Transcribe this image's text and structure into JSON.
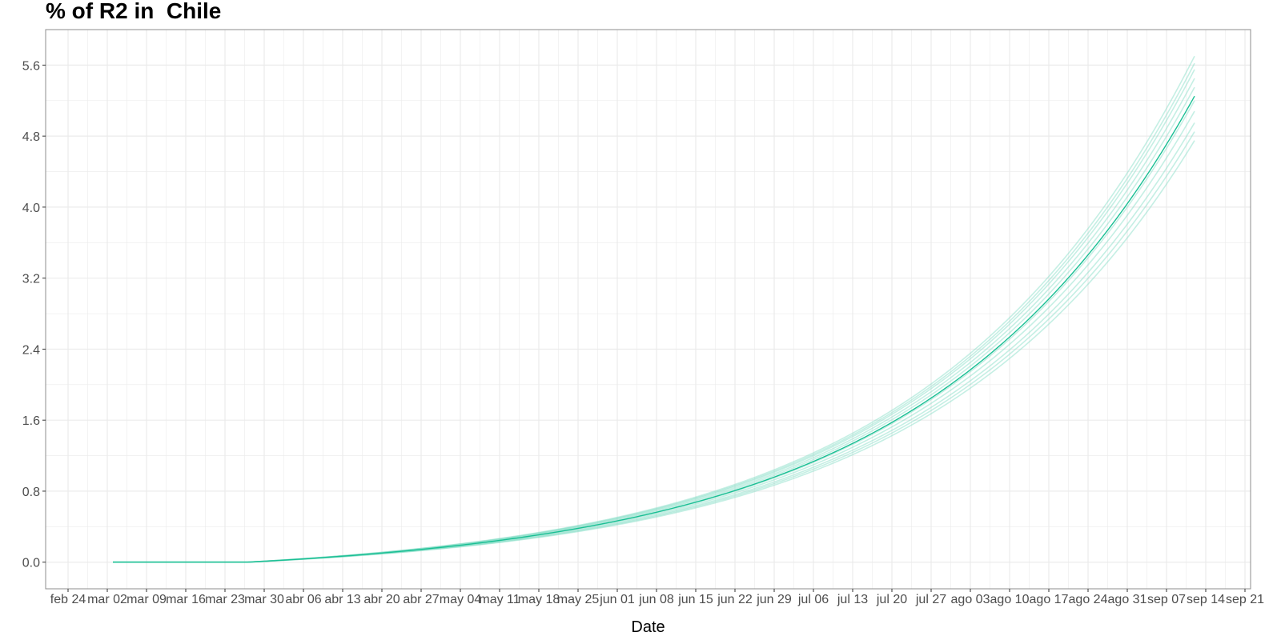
{
  "chart_data": {
    "type": "line",
    "title": "% of R2 in  Chile",
    "xlabel": "Date",
    "ylabel": "",
    "xlim": [
      "2020-02-20",
      "2020-09-22"
    ],
    "ylim": [
      -0.3,
      6.0
    ],
    "y_ticks": [
      0.0,
      0.8,
      1.6,
      2.4,
      3.2,
      4.0,
      4.8,
      5.6
    ],
    "y_tick_labels": [
      "0.0",
      "0.8",
      "1.6",
      "2.4",
      "3.2",
      "4.0",
      "4.8",
      "5.6"
    ],
    "x_ticks": [
      "2020-02-24",
      "2020-03-02",
      "2020-03-09",
      "2020-03-16",
      "2020-03-23",
      "2020-03-30",
      "2020-04-06",
      "2020-04-13",
      "2020-04-20",
      "2020-04-27",
      "2020-05-04",
      "2020-05-11",
      "2020-05-18",
      "2020-05-25",
      "2020-06-01",
      "2020-06-08",
      "2020-06-15",
      "2020-06-22",
      "2020-06-29",
      "2020-07-06",
      "2020-07-13",
      "2020-07-20",
      "2020-07-27",
      "2020-08-03",
      "2020-08-10",
      "2020-08-17",
      "2020-08-24",
      "2020-08-31",
      "2020-09-07",
      "2020-09-14",
      "2020-09-21"
    ],
    "x_tick_labels": [
      "feb 24",
      "mar 02",
      "mar 09",
      "mar 16",
      "mar 23",
      "mar 30",
      "abr 06",
      "abr 13",
      "abr 20",
      "abr 27",
      "may 04",
      "may 11",
      "may 18",
      "may 25",
      "jun 01",
      "jun 08",
      "jun 15",
      "jun 22",
      "jun 29",
      "jul 06",
      "jul 13",
      "jul 20",
      "jul 27",
      "ago 03",
      "ago 10",
      "ago 17",
      "ago 24",
      "ago 31",
      "sep 07",
      "sep 14",
      "sep 21"
    ],
    "grid": true,
    "colors": {
      "main": "#1abf94",
      "sim": "#7fdcc4",
      "grid": "#ebebeb",
      "panel_border": "#8c8c8c",
      "tick_text": "#4d4d4d"
    },
    "series": [
      {
        "role": "main",
        "x": [
          "2020-03-03",
          "2020-03-10",
          "2020-03-17",
          "2020-03-24",
          "2020-03-27",
          "2020-04-03",
          "2020-04-10",
          "2020-04-17",
          "2020-04-24",
          "2020-05-01",
          "2020-05-08",
          "2020-05-15",
          "2020-05-22",
          "2020-05-29",
          "2020-06-05",
          "2020-06-12",
          "2020-06-19",
          "2020-06-26",
          "2020-07-03",
          "2020-07-10",
          "2020-07-17",
          "2020-07-24",
          "2020-07-31",
          "2020-08-07",
          "2020-08-14",
          "2020-08-21",
          "2020-08-28",
          "2020-09-04",
          "2020-09-12"
        ],
        "y": [
          0.0,
          0.0,
          0.0,
          0.0,
          0.0,
          0.04,
          0.08,
          0.12,
          0.16,
          0.21,
          0.26,
          0.32,
          0.38,
          0.46,
          0.54,
          0.64,
          0.76,
          0.9,
          1.06,
          1.25,
          1.47,
          1.73,
          2.04,
          2.39,
          2.8,
          3.28,
          3.83,
          4.47,
          5.25
        ]
      },
      {
        "role": "simulation",
        "x_ref": "main",
        "y_end": 5.7
      },
      {
        "role": "simulation",
        "x_ref": "main",
        "y_end": 5.62
      },
      {
        "role": "simulation",
        "x_ref": "main",
        "y_end": 5.55
      },
      {
        "role": "simulation",
        "x_ref": "main",
        "y_end": 5.45
      },
      {
        "role": "simulation",
        "x_ref": "main",
        "y_end": 5.35
      },
      {
        "role": "simulation",
        "x_ref": "main",
        "y_end": 5.2
      },
      {
        "role": "simulation",
        "x_ref": "main",
        "y_end": 5.08
      },
      {
        "role": "simulation",
        "x_ref": "main",
        "y_end": 4.95
      },
      {
        "role": "simulation",
        "x_ref": "main",
        "y_end": 4.85
      },
      {
        "role": "simulation",
        "x_ref": "main",
        "y_end": 4.75
      }
    ]
  }
}
